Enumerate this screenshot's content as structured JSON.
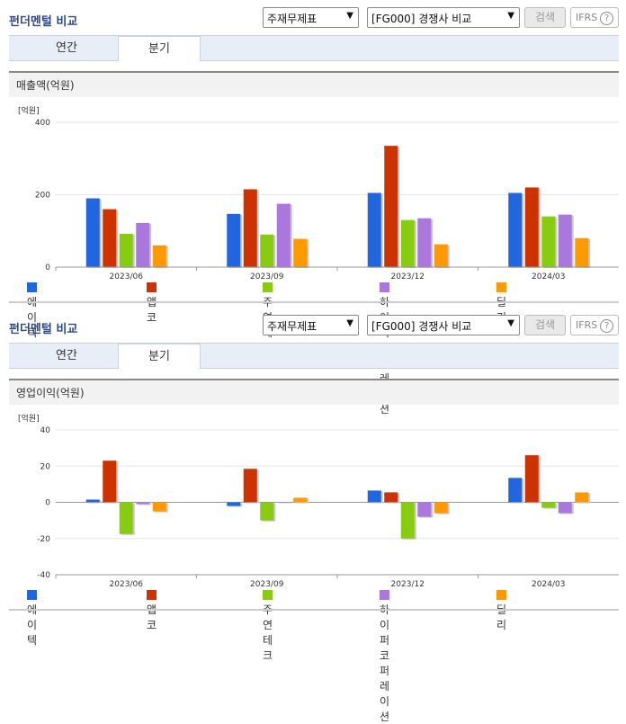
{
  "header": {
    "title": "펀더멘털 비교",
    "select_statement": "주재무제표",
    "select_compare": "[FG000] 경쟁사 비교",
    "search_label": "검색",
    "ifrs_label": "IFRS",
    "ifrs_help": "?"
  },
  "tabs": [
    "연간",
    "분기"
  ],
  "colors": {
    "에이텍": "#2266dd",
    "앱코": "#cc3300",
    "주연테크": "#88cc11",
    "하이퍼코퍼레이션": "#aa77dd",
    "딜리": "#ff9900"
  },
  "chart_data": [
    {
      "type": "bar",
      "title": "매출액(억원)",
      "unit_label": "[억원]",
      "categories": [
        "2023/06",
        "2023/09",
        "2023/12",
        "2024/03"
      ],
      "ylim": [
        0,
        400
      ],
      "yticks": [
        "0",
        "200",
        "400"
      ],
      "series": [
        {
          "name": "에이텍",
          "values": [
            190,
            147,
            205,
            205
          ]
        },
        {
          "name": "앱코",
          "values": [
            160,
            215,
            335,
            220
          ]
        },
        {
          "name": "주연테크",
          "values": [
            92,
            90,
            130,
            140
          ]
        },
        {
          "name": "하이퍼코퍼레이션",
          "values": [
            122,
            175,
            135,
            145
          ]
        },
        {
          "name": "딜리",
          "values": [
            60,
            78,
            63,
            80
          ]
        }
      ]
    },
    {
      "type": "bar",
      "title": "영업이익(억원)",
      "unit_label": "[억원]",
      "categories": [
        "2023/06",
        "2023/09",
        "2023/12",
        "2024/03"
      ],
      "ylim": [
        -40,
        40
      ],
      "yticks": [
        "-40",
        "-20",
        "0",
        "20",
        "40"
      ],
      "series": [
        {
          "name": "에이텍",
          "values": [
            1.5,
            -2,
            6.5,
            13.5
          ]
        },
        {
          "name": "앱코",
          "values": [
            23,
            18.5,
            5.5,
            26
          ]
        },
        {
          "name": "주연테크",
          "values": [
            -17.5,
            -10,
            -20,
            -3
          ]
        },
        {
          "name": "하이퍼코퍼레이션",
          "values": [
            -1,
            0,
            -8,
            -6
          ]
        },
        {
          "name": "딜리",
          "values": [
            -5,
            2.5,
            -6,
            5.5
          ]
        }
      ]
    }
  ]
}
